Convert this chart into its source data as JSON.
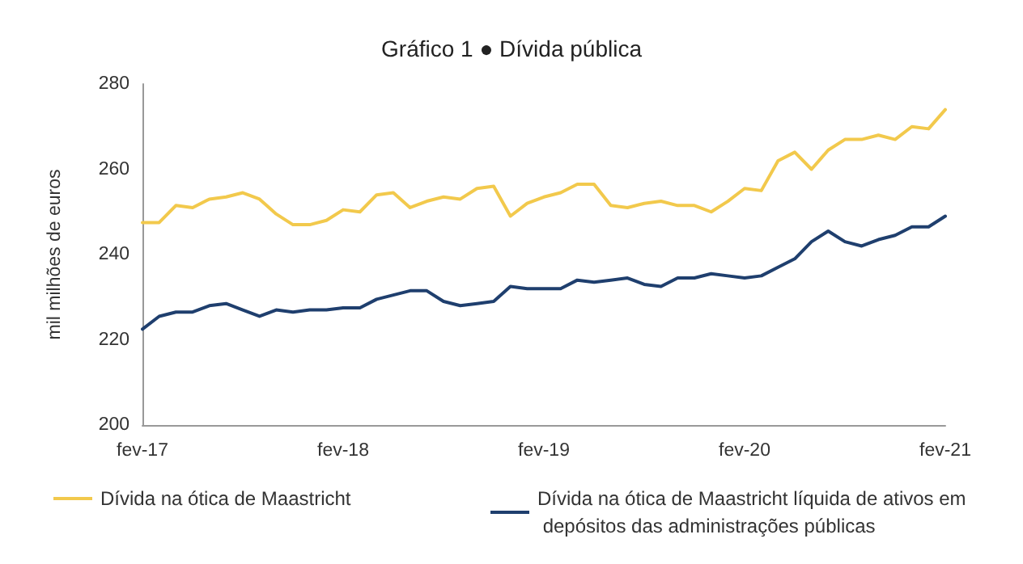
{
  "chart_data": {
    "type": "line",
    "title": "Gráfico 1 ● Dívida pública",
    "ylabel": "mil milhões de euros",
    "categories": [
      "fev-17",
      null,
      null,
      null,
      null,
      null,
      null,
      null,
      null,
      null,
      null,
      null,
      "fev-18",
      null,
      null,
      null,
      null,
      null,
      null,
      null,
      null,
      null,
      null,
      null,
      "fev-19",
      null,
      null,
      null,
      null,
      null,
      null,
      null,
      null,
      null,
      null,
      null,
      "fev-20",
      null,
      null,
      null,
      null,
      null,
      null,
      null,
      null,
      null,
      null,
      null,
      "fev-21"
    ],
    "series": [
      {
        "name": "Dívida na ótica de Maastricht",
        "color": "#f2c94c",
        "values": [
          247.5,
          247.5,
          251.5,
          251,
          253,
          253.5,
          254.5,
          253,
          249.5,
          247,
          247,
          248,
          250.5,
          250,
          254,
          254.5,
          251,
          252.5,
          253.5,
          253,
          255.5,
          256,
          249,
          252,
          253.5,
          254.5,
          256.5,
          256.5,
          251.5,
          251,
          252,
          252.5,
          251.5,
          251.5,
          250,
          252.5,
          255.5,
          255,
          262,
          264,
          260,
          264.5,
          267,
          267,
          268,
          267,
          270,
          269.5,
          274
        ]
      },
      {
        "name": "Dívida na ótica de Maastricht líquida de ativos em depósitos das administrações públicas",
        "color": "#1f3f6e",
        "values": [
          222.5,
          225.5,
          226.5,
          226.5,
          228,
          228.5,
          227,
          225.5,
          227,
          226.5,
          227,
          227,
          227.5,
          227.5,
          229.5,
          230.5,
          231.5,
          231.5,
          229,
          228,
          228.5,
          229,
          232.5,
          232,
          232,
          232,
          234,
          233.5,
          234,
          234.5,
          233,
          232.5,
          234.5,
          234.5,
          235.5,
          235,
          234.5,
          235,
          237,
          239,
          243,
          245.5,
          243,
          242,
          243.5,
          244.5,
          246.5,
          246.5,
          249
        ]
      }
    ],
    "ylim": [
      200,
      280
    ],
    "yticks": [
      200,
      220,
      240,
      260,
      280
    ],
    "grid": false,
    "legend": "bottom",
    "marker": "none",
    "line_style": "solid"
  }
}
